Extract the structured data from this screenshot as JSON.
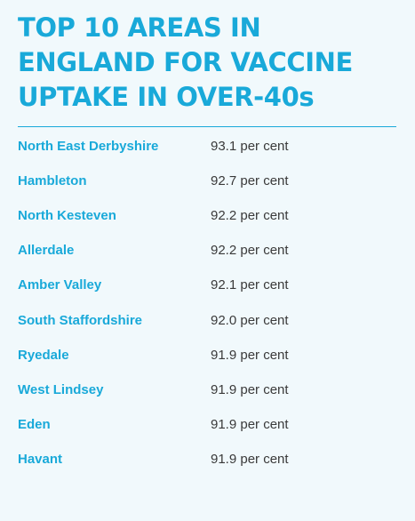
{
  "chart_data": {
    "type": "table",
    "title_lines": [
      "TOP 10 AREAS IN",
      "ENGLAND FOR VACCINE",
      "UPTAKE IN OVER-40s"
    ],
    "rows": [
      {
        "area": "North East Derbyshire",
        "value": "93.1 per cent"
      },
      {
        "area": "Hambleton",
        "value": "92.7 per cent"
      },
      {
        "area": "North Kesteven",
        "value": "92.2 per cent"
      },
      {
        "area": "Allerdale",
        "value": "92.2 per cent"
      },
      {
        "area": "Amber Valley",
        "value": "92.1 per cent"
      },
      {
        "area": "South Staffordshire",
        "value": "92.0 per cent"
      },
      {
        "area": "Ryedale",
        "value": "91.9 per cent"
      },
      {
        "area": "West Lindsey",
        "value": "91.9 per cent"
      },
      {
        "area": "Eden",
        "value": "91.9 per cent"
      },
      {
        "area": "Havant",
        "value": "91.9 per cent"
      }
    ]
  },
  "colors": {
    "accent": "#19a9d9",
    "text": "#3a3a3a",
    "background": "#f1f9fc"
  }
}
